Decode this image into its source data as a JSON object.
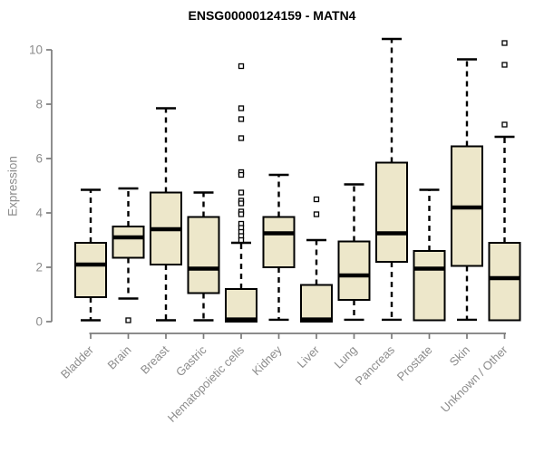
{
  "title": "ENSG00000124159 - MATN4",
  "chart_data": {
    "type": "boxplot",
    "title": "ENSG00000124159 - MATN4",
    "xlabel": "",
    "ylabel": "Expression",
    "ylim": [
      0,
      10.5
    ],
    "yticks": [
      0,
      2,
      4,
      6,
      8,
      10
    ],
    "grid": false,
    "legend": "none",
    "categories": [
      "Bladder",
      "Brain",
      "Breast",
      "Gastric",
      "Hematopoietic cells",
      "Kidney",
      "Liver",
      "Lung",
      "Pancreas",
      "Prostate",
      "Skin",
      "Unknown / Other"
    ],
    "boxes": [
      {
        "category": "Bladder",
        "whisker_low": 0.05,
        "q1": 0.9,
        "median": 2.1,
        "q3": 2.9,
        "whisker_high": 4.85,
        "outliers": []
      },
      {
        "category": "Brain",
        "whisker_low": 0.85,
        "q1": 2.35,
        "median": 3.1,
        "q3": 3.5,
        "whisker_high": 4.9,
        "outliers": [
          0.05
        ]
      },
      {
        "category": "Breast",
        "whisker_low": 0.05,
        "q1": 2.1,
        "median": 3.4,
        "q3": 4.75,
        "whisker_high": 7.85,
        "outliers": []
      },
      {
        "category": "Gastric",
        "whisker_low": 0.05,
        "q1": 1.05,
        "median": 1.95,
        "q3": 3.85,
        "whisker_high": 4.75,
        "outliers": []
      },
      {
        "category": "Hematopoietic cells",
        "whisker_low": 0,
        "q1": 0,
        "median": 0.08,
        "q3": 1.2,
        "whisker_high": 2.9,
        "outliers": [
          9.4,
          7.85,
          7.45,
          6.75,
          5.5,
          5.4,
          4.75,
          4.45,
          4.35,
          4.05,
          3.95,
          3.6,
          3.45,
          3.3,
          3.15,
          3.0
        ]
      },
      {
        "category": "Kidney",
        "whisker_low": 0.07,
        "q1": 2.0,
        "median": 3.25,
        "q3": 3.85,
        "whisker_high": 5.4,
        "outliers": []
      },
      {
        "category": "Liver",
        "whisker_low": 0,
        "q1": 0,
        "median": 0.08,
        "q3": 1.35,
        "whisker_high": 3.0,
        "outliers": [
          4.5,
          3.95
        ]
      },
      {
        "category": "Lung",
        "whisker_low": 0.07,
        "q1": 0.8,
        "median": 1.7,
        "q3": 2.95,
        "whisker_high": 5.05,
        "outliers": []
      },
      {
        "category": "Pancreas",
        "whisker_low": 0.07,
        "q1": 2.2,
        "median": 3.25,
        "q3": 5.85,
        "whisker_high": 10.4,
        "outliers": []
      },
      {
        "category": "Prostate",
        "whisker_low": 0.03,
        "q1": 0.05,
        "median": 1.95,
        "q3": 2.6,
        "whisker_high": 4.85,
        "outliers": []
      },
      {
        "category": "Skin",
        "whisker_low": 0.07,
        "q1": 2.05,
        "median": 4.2,
        "q3": 6.45,
        "whisker_high": 9.65,
        "outliers": []
      },
      {
        "category": "Unknown / Other",
        "whisker_low": 0.03,
        "q1": 0.05,
        "median": 1.6,
        "q3": 2.9,
        "whisker_high": 6.8,
        "outliers": [
          10.25,
          9.45,
          7.25
        ]
      }
    ]
  },
  "style": {
    "box_fill": "#EDE7CA",
    "box_stroke": "#000000",
    "median_color": "#000000",
    "whisker_color": "#000000",
    "outlier_fill": "#FFFFFF",
    "outlier_stroke": "#000000",
    "axis_color": "#7B7B7B",
    "tick_label_color": "#8C8C8C",
    "title_color": "#000000",
    "background": "#FFFFFF"
  }
}
